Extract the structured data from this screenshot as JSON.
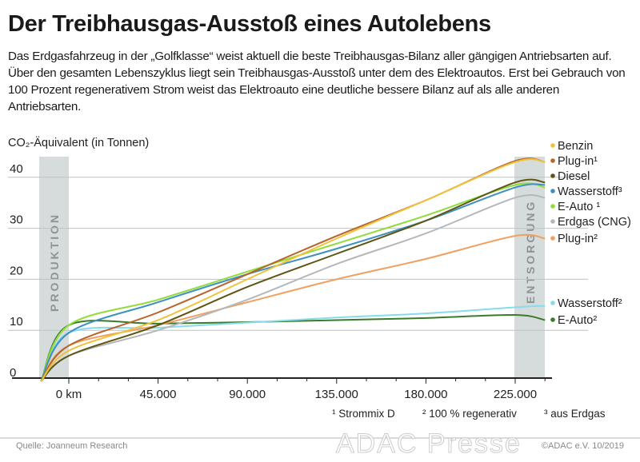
{
  "header": {
    "title": "Der Treibhausgas-Ausstoß eines Autolebens",
    "subtitle": "Das Erdgasfahrzeug in der „Golfklasse“ weist aktuell die beste Treibhausgas-Bilanz aller gängigen Antriebsarten auf. Über den gesamten Lebenszyklus liegt sein Treibhausgas-Ausstoß unter dem des Elektroautos. Erst bei Gebrauch von 100 Prozent regenerativem Strom weist das Elektroauto eine deutliche bessere Bilanz auf als alle anderen Antriebsarten."
  },
  "chart_data": {
    "type": "line",
    "ylabel": "CO₂-Äquivalent (in Tonnen)",
    "ylim": [
      0,
      43
    ],
    "yticks": [
      "0",
      "10",
      "20",
      "30",
      "40"
    ],
    "xticks": [
      {
        "v": 0,
        "label": "0 km"
      },
      {
        "v": 45000,
        "label": "45.000"
      },
      {
        "v": 90000,
        "label": "90.000"
      },
      {
        "v": 135000,
        "label": "135.000"
      },
      {
        "v": 180000,
        "label": "180.000"
      },
      {
        "v": 225000,
        "label": "225.000"
      }
    ],
    "phases": {
      "production": "PRODUKTION",
      "disposal": "ENTSORGUNG"
    },
    "grid": true,
    "legend_placement": "right",
    "x": [
      -14000,
      0,
      45000,
      90000,
      135000,
      180000,
      225000,
      240000
    ],
    "series": [
      {
        "name": "Benzin",
        "color": "#f0c23c",
        "values": [
          0,
          6,
          12,
          20,
          28,
          35.5,
          43,
          43
        ]
      },
      {
        "name": "Plug-in¹",
        "color": "#b8642a",
        "values": [
          0,
          7,
          13.5,
          21,
          28.5,
          35.5,
          43.2,
          43
        ]
      },
      {
        "name": "Diesel",
        "color": "#5e5514",
        "values": [
          0,
          5,
          11,
          18.5,
          25,
          31.5,
          39,
          39
        ]
      },
      {
        "name": "Wasserstoff³",
        "color": "#3f8fc0",
        "values": [
          0,
          9.5,
          15.5,
          21,
          26,
          31.5,
          38,
          38.5
        ]
      },
      {
        "name": "E-Auto ¹",
        "color": "#8fdc3a",
        "values": [
          0,
          11,
          16,
          21.5,
          27,
          32.5,
          38.5,
          38
        ]
      },
      {
        "name": "Erdgas (CNG)",
        "color": "#b5b8ba",
        "values": [
          0,
          5,
          10,
          16,
          23,
          29,
          36,
          36
        ]
      },
      {
        "name": "Plug-in²",
        "color": "#f0a060",
        "values": [
          0,
          7,
          11,
          15.5,
          20,
          24,
          28.5,
          28
        ]
      },
      {
        "name": "Wasserstoff²",
        "color": "#86dcec",
        "values": [
          0,
          9.5,
          10.5,
          11.5,
          12.5,
          13.3,
          14.5,
          14.8
        ]
      },
      {
        "name": "E-Auto²",
        "color": "#3a7a2a",
        "values": [
          0,
          11,
          11.3,
          11.6,
          12,
          12.4,
          13,
          12
        ]
      }
    ],
    "footnotes": [
      "¹ Strommix D",
      "² 100 % regenerativ",
      "³ aus Erdgas"
    ]
  },
  "footer": {
    "source": "Quelle:  Joanneum Research",
    "copyright": "©ADAC e.V. 10/2019",
    "watermark": "ADAC Presse"
  }
}
